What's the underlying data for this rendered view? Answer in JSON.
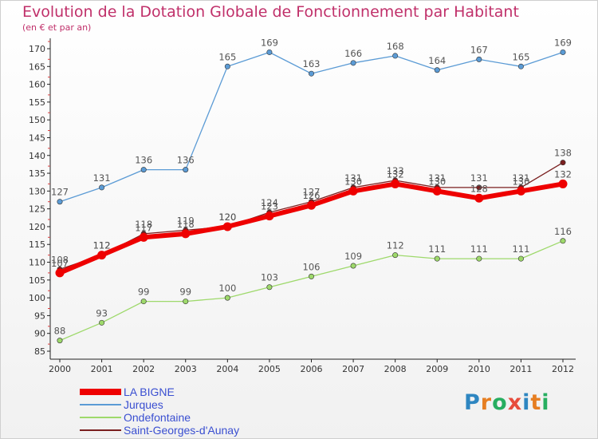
{
  "title": "Evolution de la Dotation Globale de Fonctionnement par Habitant",
  "subtitle": "(en € et par an)",
  "logo": {
    "letters": [
      "P",
      "r",
      "o",
      "x",
      "i",
      "t",
      "i"
    ],
    "colors": [
      "#2e86c1",
      "#e67e22",
      "#27ae60",
      "#e74c3c",
      "#2e86c1",
      "#e67e22",
      "#27ae60"
    ]
  },
  "chart_data": {
    "type": "line",
    "x": [
      "2000",
      "2001",
      "2002",
      "2003",
      "2004",
      "2005",
      "2006",
      "2007",
      "2008",
      "2009",
      "2010",
      "2011",
      "2012"
    ],
    "ylim": [
      85,
      170
    ],
    "yticks": [
      85,
      90,
      95,
      100,
      105,
      110,
      115,
      120,
      125,
      130,
      135,
      140,
      145,
      150,
      155,
      160,
      165,
      170
    ],
    "grid": false,
    "legend_position": "bottom-left",
    "series": [
      {
        "name": "Jurques",
        "color": "#5b9bd5",
        "values": [
          127,
          131,
          136,
          136,
          165,
          169,
          163,
          166,
          168,
          164,
          167,
          165,
          169
        ]
      },
      {
        "name": "Ondefontaine",
        "color": "#9ed96b",
        "values": [
          88,
          93,
          99,
          99,
          100,
          103,
          106,
          109,
          112,
          111,
          111,
          111,
          116
        ]
      },
      {
        "name": "Saint-Georges-d'Aunay",
        "color": "#7a1f1f",
        "values": [
          108,
          112,
          118,
          119,
          120,
          124,
          127,
          131,
          133,
          131,
          131,
          131,
          138
        ]
      },
      {
        "name": "LA BIGNE",
        "color": "#ee0000",
        "values": [
          107,
          112,
          117,
          118,
          120,
          123,
          126,
          130,
          132,
          130,
          128,
          130,
          132
        ]
      }
    ]
  }
}
